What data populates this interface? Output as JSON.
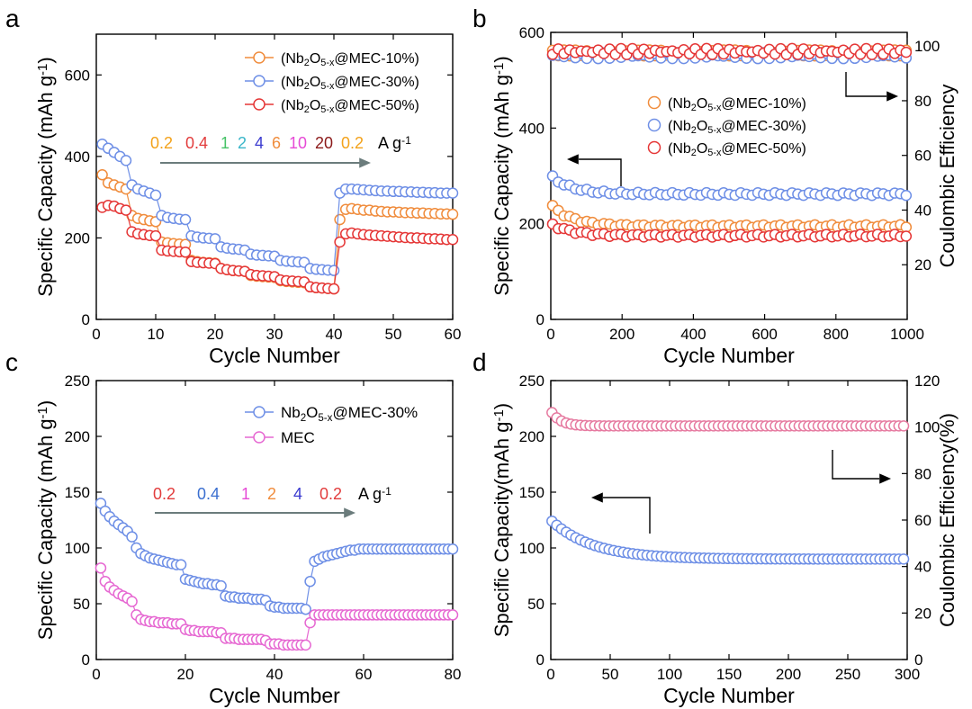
{
  "panels": {
    "a": {
      "letter": "a"
    },
    "b": {
      "letter": "b"
    },
    "c": {
      "letter": "c"
    },
    "d": {
      "letter": "d"
    }
  },
  "chart_data": [
    {
      "id": "a",
      "type": "scatter",
      "title": "",
      "xlabel": "Cycle Number",
      "ylabel": "Specific Capacity (mAh g⁻¹)",
      "xlim": [
        0,
        60
      ],
      "ylim": [
        0,
        700
      ],
      "xticks": [
        0,
        10,
        20,
        30,
        40,
        50,
        60
      ],
      "yticks": [
        0,
        200,
        400,
        600
      ],
      "legend": [
        "(Nb₂O₅₋ₓ@MEC-10%)",
        "(Nb₂O₅₋ₓ@MEC-30%)",
        "(Nb₂O₅₋ₓ@MEC-50%)"
      ],
      "rate_labels": [
        "0.2",
        "0.4",
        "1",
        "2",
        "4",
        "6",
        "10",
        "20",
        "0.2"
      ],
      "rate_unit": "A g⁻¹",
      "series": [
        {
          "name": "(Nb₂O₅₋ₓ@MEC-10%)",
          "color": "#f08c3c",
          "values": [
            355,
            335,
            330,
            325,
            320,
            255,
            248,
            245,
            242,
            240,
            190,
            188,
            186,
            185,
            184,
            145,
            142,
            140,
            139,
            138,
            125,
            122,
            120,
            119,
            118,
            108,
            106,
            105,
            104,
            103,
            95,
            93,
            92,
            91,
            90,
            80,
            78,
            77,
            76,
            75,
            245,
            270,
            272,
            270,
            268,
            268,
            266,
            265,
            264,
            264,
            263,
            262,
            262,
            261,
            261,
            260,
            260,
            259,
            259,
            258
          ]
        },
        {
          "name": "(Nb₂O₅₋ₓ@MEC-30%)",
          "color": "#6e8fe6",
          "values": [
            430,
            420,
            410,
            400,
            390,
            330,
            320,
            315,
            310,
            305,
            255,
            250,
            248,
            246,
            245,
            205,
            202,
            200,
            199,
            198,
            178,
            175,
            173,
            172,
            170,
            160,
            158,
            157,
            156,
            155,
            145,
            143,
            142,
            141,
            140,
            125,
            123,
            122,
            121,
            120,
            310,
            320,
            320,
            319,
            318,
            317,
            316,
            315,
            315,
            314,
            314,
            313,
            313,
            312,
            312,
            311,
            311,
            310,
            310,
            310
          ]
        },
        {
          "name": "(Nb₂O₅₋ₓ@MEC-50%)",
          "color": "#e53636",
          "values": [
            275,
            280,
            278,
            272,
            268,
            215,
            210,
            208,
            206,
            205,
            170,
            168,
            167,
            166,
            165,
            142,
            140,
            139,
            138,
            137,
            125,
            122,
            120,
            119,
            118,
            110,
            108,
            107,
            106,
            105,
            97,
            95,
            94,
            93,
            92,
            80,
            78,
            77,
            76,
            75,
            190,
            210,
            212,
            210,
            208,
            207,
            206,
            205,
            204,
            203,
            202,
            201,
            200,
            200,
            199,
            198,
            198,
            197,
            196,
            196
          ]
        }
      ]
    },
    {
      "id": "b",
      "type": "scatter",
      "xlabel": "Cycle Number",
      "ylabel": "Specific Capacity (mAh g⁻¹)",
      "y2label": "Coulombic Efficiency",
      "xlim": [
        0,
        1000
      ],
      "ylim": [
        0,
        600
      ],
      "y2lim": [
        0,
        105
      ],
      "xticks": [
        0,
        200,
        400,
        600,
        800,
        1000
      ],
      "yticks": [
        0,
        200,
        400,
        600
      ],
      "y2ticks": [
        20,
        40,
        60,
        80,
        100
      ],
      "legend": [
        "(Nb₂O₅₋ₓ@MEC-10%)",
        "(Nb₂O₅₋ₓ@MEC-30%)",
        "(Nb₂O₅₋ₓ@MEC-50%)"
      ],
      "capacity_series": [
        {
          "name": "(Nb₂O₅₋ₓ@MEC-10%)",
          "color": "#f08c3c",
          "start": 240,
          "end": 195
        },
        {
          "name": "(Nb₂O₅₋ₓ@MEC-30%)",
          "color": "#6e8fe6",
          "start": 300,
          "end": 262
        },
        {
          "name": "(Nb₂O₅₋ₓ@MEC-50%)",
          "color": "#e53636",
          "start": 200,
          "end": 175
        }
      ],
      "efficiency_series": [
        {
          "name": "(Nb₂O₅₋ₓ@MEC-10%)",
          "color": "#f08c3c",
          "value": 97.5
        },
        {
          "name": "(Nb₂O₅₋ₓ@MEC-30%)",
          "color": "#6e8fe6",
          "value": 96.5
        },
        {
          "name": "(Nb₂O₅₋ₓ@MEC-50%)",
          "color": "#e53636",
          "value": 98.0
        }
      ]
    },
    {
      "id": "c",
      "type": "scatter",
      "xlabel": "Cycle Number",
      "ylabel": "Specific Capacity (mAh g⁻¹)",
      "xlim": [
        0,
        80
      ],
      "ylim": [
        0,
        250
      ],
      "xticks": [
        0,
        20,
        40,
        60,
        80
      ],
      "yticks": [
        0,
        50,
        100,
        150,
        200,
        250
      ],
      "legend": [
        "Nb₂O₅₋ₓ@MEC-30%",
        "MEC"
      ],
      "rate_labels": [
        "0.2",
        "0.4",
        "1",
        "2",
        "4",
        "0.2"
      ],
      "rate_unit": "A g⁻¹",
      "series": [
        {
          "name": "Nb₂O₅₋ₓ@MEC-30%",
          "color": "#6e8fe6",
          "values": [
            140,
            133,
            128,
            124,
            121,
            118,
            115,
            110,
            100,
            95,
            93,
            91,
            90,
            89,
            88,
            87,
            86,
            85,
            85,
            72,
            71,
            70,
            69,
            68,
            68,
            67,
            67,
            66,
            57,
            56,
            56,
            55,
            55,
            55,
            54,
            54,
            54,
            53,
            48,
            47,
            47,
            46,
            46,
            46,
            46,
            46,
            45,
            70,
            88,
            90,
            92,
            93,
            94,
            95,
            96,
            97,
            98,
            98,
            99,
            99,
            99,
            99,
            99,
            99,
            99,
            99,
            99,
            99,
            99,
            99,
            99,
            99,
            99,
            99,
            99,
            99,
            99,
            99,
            99,
            99
          ]
        },
        {
          "name": "MEC",
          "color": "#e668d2",
          "values": [
            82,
            70,
            65,
            62,
            59,
            57,
            55,
            52,
            40,
            36,
            35,
            34,
            34,
            33,
            33,
            33,
            32,
            32,
            32,
            27,
            26,
            26,
            25,
            25,
            25,
            25,
            24,
            24,
            19,
            19,
            19,
            18,
            18,
            18,
            18,
            18,
            18,
            17,
            14,
            14,
            14,
            13,
            13,
            13,
            13,
            13,
            13,
            33,
            40,
            40,
            40,
            40,
            40,
            40,
            40,
            40,
            40,
            40,
            40,
            40,
            40,
            40,
            40,
            40,
            40,
            40,
            40,
            40,
            40,
            40,
            40,
            40,
            40,
            40,
            40,
            40,
            40,
            40,
            40,
            40
          ]
        }
      ]
    },
    {
      "id": "d",
      "type": "scatter",
      "xlabel": "Cycle Number",
      "ylabel": "Specific Capacity(mAh g⁻¹)",
      "y2label": "Coulombic Efficiency(%)",
      "xlim": [
        0,
        300
      ],
      "ylim": [
        0,
        250
      ],
      "y2lim": [
        0,
        120
      ],
      "xticks": [
        0,
        50,
        100,
        150,
        200,
        250,
        300
      ],
      "yticks": [
        0,
        50,
        100,
        150,
        200,
        250
      ],
      "y2ticks": [
        0,
        20,
        40,
        60,
        80,
        100,
        120
      ],
      "capacity_series": {
        "name": "capacity",
        "color": "#6e8fe6",
        "start": 125,
        "end": 90
      },
      "efficiency_series": {
        "name": "efficiency",
        "color": "#e67aa0",
        "start": 107,
        "end": 100.5
      }
    }
  ]
}
